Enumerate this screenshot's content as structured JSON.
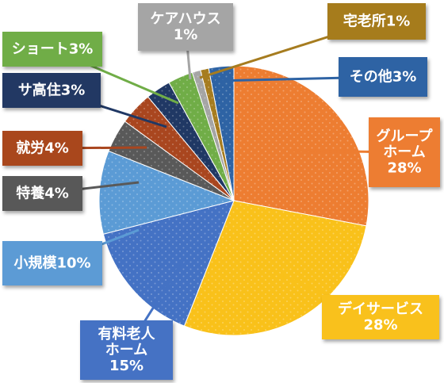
{
  "chart_data": {
    "type": "pie",
    "slices": [
      {
        "label": [
          "グループ",
          "ホーム",
          "28%"
        ],
        "category": "グループホーム",
        "value": 28,
        "color": "#ED7D31"
      },
      {
        "label": [
          "デイサービス",
          "28%"
        ],
        "category": "デイサービス",
        "value": 28,
        "color": "#F9C11A"
      },
      {
        "label": [
          "有料老人",
          "ホーム",
          "15%"
        ],
        "category": "有料老人ホーム",
        "value": 15,
        "color": "#4472C4"
      },
      {
        "label": [
          "小規模10%"
        ],
        "category": "小規模",
        "value": 10,
        "color": "#5B9BD5"
      },
      {
        "label": [
          "特養4%"
        ],
        "category": "特養",
        "value": 4,
        "color": "#595959"
      },
      {
        "label": [
          "就労4%"
        ],
        "category": "就労",
        "value": 4,
        "color": "#A9461F"
      },
      {
        "label": [
          "サ高住3%"
        ],
        "category": "サ高住",
        "value": 3,
        "color": "#203864"
      },
      {
        "label": [
          "ショート3%"
        ],
        "category": "ショート",
        "value": 3,
        "color": "#70AD47"
      },
      {
        "label": [
          "ケアハウス",
          "1%"
        ],
        "category": "ケアハウス",
        "value": 1,
        "color": "#A5A5A5"
      },
      {
        "label": [
          "宅老所1%"
        ],
        "category": "宅老所",
        "value": 1,
        "color": "#A67C1F"
      },
      {
        "label": [
          "その他3%"
        ],
        "category": "その他",
        "value": 3,
        "color": "#2E63A4"
      }
    ]
  }
}
